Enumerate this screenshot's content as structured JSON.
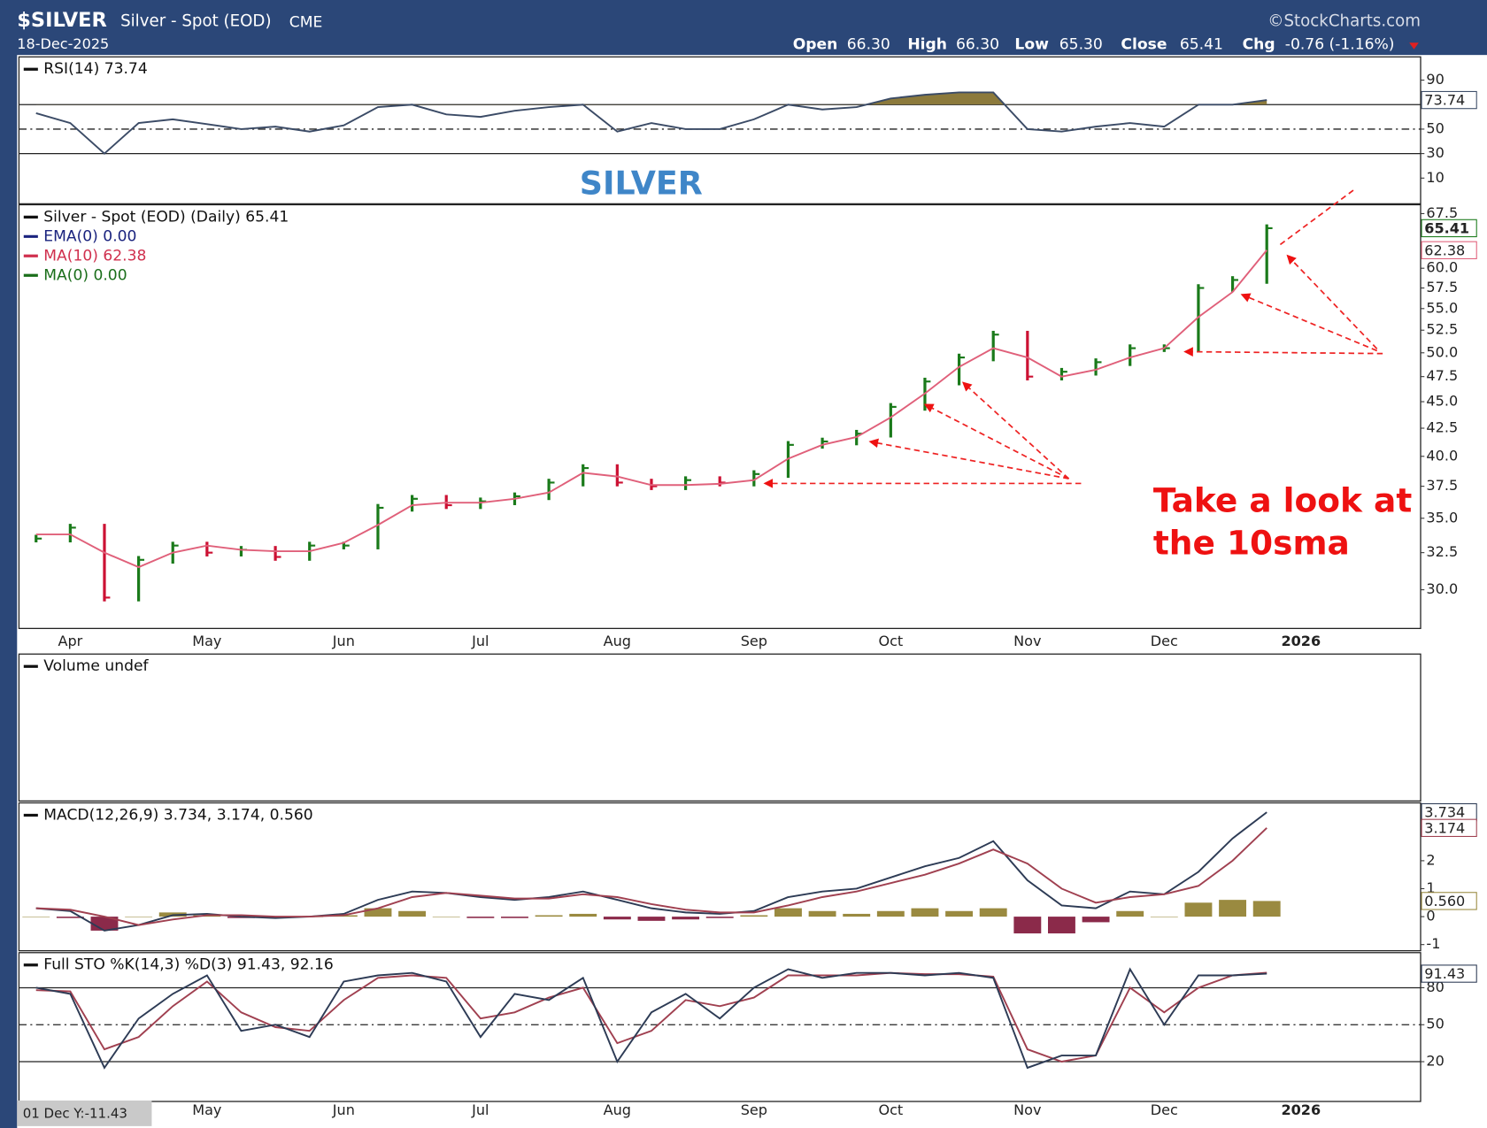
{
  "header": {
    "symbol": "$SILVER",
    "name": "Silver - Spot (EOD)",
    "exchange": "CME",
    "date": "18-Dec-2025",
    "brand": "©StockCharts.com",
    "open_label": "Open",
    "open": "66.30",
    "high_label": "High",
    "high": "66.30",
    "low_label": "Low",
    "low": "65.30",
    "close_label": "Close",
    "close": "65.41",
    "chg_label": "Chg",
    "chg": "-0.76 (-1.16%)"
  },
  "annotations": {
    "banner": "SILVER",
    "note_line1": "Take a look at",
    "note_line2": "the 10sma",
    "cursor": "01 Dec Y:-11.43"
  },
  "chart_data": [
    {
      "type": "line",
      "legend": [
        {
          "text": "RSI(14) 73.74",
          "color": "#111111"
        }
      ],
      "ylim": [
        -11,
        109
      ],
      "yticks": [
        90,
        50,
        30,
        10
      ],
      "hlines": [
        {
          "value": 70,
          "dash": false
        },
        {
          "value": 50,
          "dash": true
        },
        {
          "value": 30,
          "dash": false
        }
      ],
      "series": [
        {
          "name": "RSI(14)",
          "kind": "line",
          "color": "#3b4b66",
          "fill_above": 70,
          "fill_color": "#8c7a3c",
          "last_label": "73.74",
          "values": [
            63,
            55,
            30,
            55,
            58,
            54,
            50,
            52,
            48,
            53,
            68,
            70,
            62,
            60,
            65,
            68,
            70,
            48,
            55,
            50,
            50,
            58,
            70,
            66,
            68,
            75,
            78,
            80,
            80,
            50,
            48,
            52,
            55,
            52,
            70,
            70,
            73.74,
            null,
            null,
            null,
            null
          ]
        }
      ]
    },
    {
      "type": "line",
      "ylog": true,
      "legend": [
        {
          "text": "Silver - Spot (EOD) (Daily) 65.41",
          "color": "#111111"
        },
        {
          "text": "EMA(0) 0.00",
          "color": "#1a237e"
        },
        {
          "text": "MA(10) 62.38",
          "color": "#d0304e"
        },
        {
          "text": "MA(0) 0.00",
          "color": "#1a6e1a"
        }
      ],
      "categories": [
        null,
        "Apr",
        null,
        null,
        null,
        "May",
        null,
        null,
        null,
        "Jun",
        null,
        null,
        null,
        "Jul",
        null,
        null,
        null,
        "Aug",
        null,
        null,
        null,
        "Sep",
        null,
        null,
        null,
        "Oct",
        null,
        null,
        null,
        "Nov",
        null,
        null,
        null,
        "Dec",
        null,
        null,
        null,
        "2026",
        null,
        null,
        null
      ],
      "ylim": [
        27.6,
        68.8
      ],
      "yticks": [
        {
          "value": 30,
          "label": "30.0"
        },
        {
          "value": 32.5,
          "label": "32.5"
        },
        {
          "value": 35,
          "label": "35.0"
        },
        {
          "value": 37.5,
          "label": "37.5"
        },
        {
          "value": 40,
          "label": "40.0"
        },
        {
          "value": 42.5,
          "label": "42.5"
        },
        {
          "value": 45,
          "label": "45.0"
        },
        {
          "value": 47.5,
          "label": "47.5"
        },
        {
          "value": 50,
          "label": "50.0"
        },
        {
          "value": 52.5,
          "label": "52.5"
        },
        {
          "value": 55,
          "label": "55.0"
        },
        {
          "value": 57.5,
          "label": "57.5"
        },
        {
          "value": 60,
          "label": "60.0"
        },
        {
          "value": 67.5,
          "label": "67.5"
        }
      ],
      "series": [
        {
          "name": "Silver - Spot (EOD)",
          "kind": "close-bars",
          "up_color": "#1a7a1a",
          "down_color": "#cc1133",
          "last_label": "65.41",
          "values": [
            33.5,
            34.3,
            29.5,
            32,
            33,
            32.5,
            32.7,
            32.2,
            33,
            33,
            35.8,
            36.5,
            36,
            36.3,
            36.7,
            37.8,
            39,
            37.8,
            37.5,
            38,
            37.8,
            38.5,
            41,
            41.3,
            42,
            44.5,
            47,
            49.5,
            52,
            47.5,
            48,
            49,
            50.5,
            50.5,
            57.5,
            58.5,
            65.41,
            null,
            null,
            null,
            null
          ]
        },
        {
          "name": "MA(10)",
          "kind": "line",
          "color": "#e0607a",
          "last_label": "62.38",
          "values": [
            33.8,
            33.8,
            32.5,
            31.5,
            32.5,
            33,
            32.7,
            32.6,
            32.6,
            33.2,
            34.5,
            36,
            36.2,
            36.2,
            36.5,
            37,
            38.6,
            38.3,
            37.6,
            37.6,
            37.7,
            38,
            39.8,
            41,
            41.7,
            43.5,
            45.8,
            48.5,
            50.5,
            49.5,
            47.5,
            48.2,
            49.5,
            50.5,
            54,
            57,
            62.38,
            null,
            null,
            null,
            null
          ]
        }
      ]
    },
    {
      "type": "volume",
      "legend": [
        {
          "text": "Volume undef",
          "color": "#111111"
        }
      ]
    },
    {
      "type": "line",
      "legend": [
        {
          "text": "MACD(12,26,9) 3.734, 3.174, 0.560",
          "color": "#111111"
        }
      ],
      "ylim": [
        -1.22,
        4.07
      ],
      "yticks": [
        -1,
        0,
        1,
        2
      ],
      "series": [
        {
          "name": "Histogram",
          "kind": "histogram",
          "color": "#9a8a40",
          "neg_color": "#8b2a4a",
          "last_label": "0.560",
          "values": [
            0,
            -0.05,
            -0.5,
            0,
            0.15,
            0.05,
            -0.05,
            -0.05,
            0,
            0.05,
            0.3,
            0.2,
            0,
            -0.05,
            -0.05,
            0.05,
            0.1,
            -0.1,
            -0.15,
            -0.1,
            -0.05,
            0.05,
            0.3,
            0.2,
            0.1,
            0.2,
            0.3,
            0.2,
            0.3,
            -0.6,
            -0.6,
            -0.2,
            0.2,
            0,
            0.5,
            0.6,
            0.56,
            null,
            null,
            null,
            null
          ]
        },
        {
          "name": "MACD",
          "kind": "line",
          "color": "#2d3b55",
          "last_label": "3.734",
          "values": [
            0.3,
            0.2,
            -0.5,
            -0.3,
            0.05,
            0.1,
            0,
            -0.05,
            0,
            0.1,
            0.6,
            0.9,
            0.85,
            0.7,
            0.6,
            0.7,
            0.9,
            0.6,
            0.3,
            0.15,
            0.1,
            0.2,
            0.7,
            0.9,
            1,
            1.4,
            1.8,
            2.1,
            2.7,
            1.3,
            0.4,
            0.3,
            0.9,
            0.8,
            1.6,
            2.8,
            3.734,
            null,
            null,
            null,
            null
          ]
        },
        {
          "name": "Signal",
          "kind": "line",
          "color": "#a04050",
          "last_label": "3.174",
          "values": [
            0.3,
            0.25,
            0,
            -0.3,
            -0.1,
            0.05,
            0.05,
            0,
            0,
            0.05,
            0.3,
            0.7,
            0.85,
            0.75,
            0.65,
            0.65,
            0.8,
            0.7,
            0.45,
            0.25,
            0.15,
            0.15,
            0.4,
            0.7,
            0.9,
            1.2,
            1.5,
            1.9,
            2.4,
            1.9,
            1,
            0.5,
            0.7,
            0.8,
            1.1,
            2,
            3.174,
            null,
            null,
            null,
            null
          ]
        }
      ]
    },
    {
      "type": "line",
      "legend": [
        {
          "text": "Full STO %K(14,3) %D(3) 91.43, 92.16",
          "color": "#111111"
        }
      ],
      "ylim": [
        -12.3,
        108.5
      ],
      "yticks": [
        80,
        50,
        20
      ],
      "hlines": [
        {
          "value": 80,
          "dash": false
        },
        {
          "value": 50,
          "dash": true
        },
        {
          "value": 20,
          "dash": false
        }
      ],
      "series": [
        {
          "name": "%D",
          "kind": "line",
          "color": "#a04050",
          "values": [
            78,
            77,
            30,
            40,
            65,
            85,
            60,
            48,
            45,
            70,
            88,
            90,
            88,
            55,
            60,
            72,
            80,
            35,
            45,
            70,
            65,
            72,
            90,
            90,
            90,
            92,
            91,
            91,
            89,
            30,
            20,
            25,
            80,
            60,
            80,
            90,
            92.16,
            null,
            null,
            null,
            null
          ]
        },
        {
          "name": "%K",
          "kind": "line",
          "color": "#2d3b55",
          "last_label": "91.43",
          "values": [
            80,
            75,
            15,
            55,
            75,
            90,
            45,
            50,
            40,
            85,
            90,
            92,
            85,
            40,
            75,
            70,
            88,
            20,
            60,
            75,
            55,
            80,
            95,
            88,
            92,
            92,
            90,
            92,
            88,
            15,
            25,
            25,
            95,
            50,
            90,
            90,
            91.43,
            null,
            null,
            null,
            null
          ]
        }
      ]
    }
  ]
}
